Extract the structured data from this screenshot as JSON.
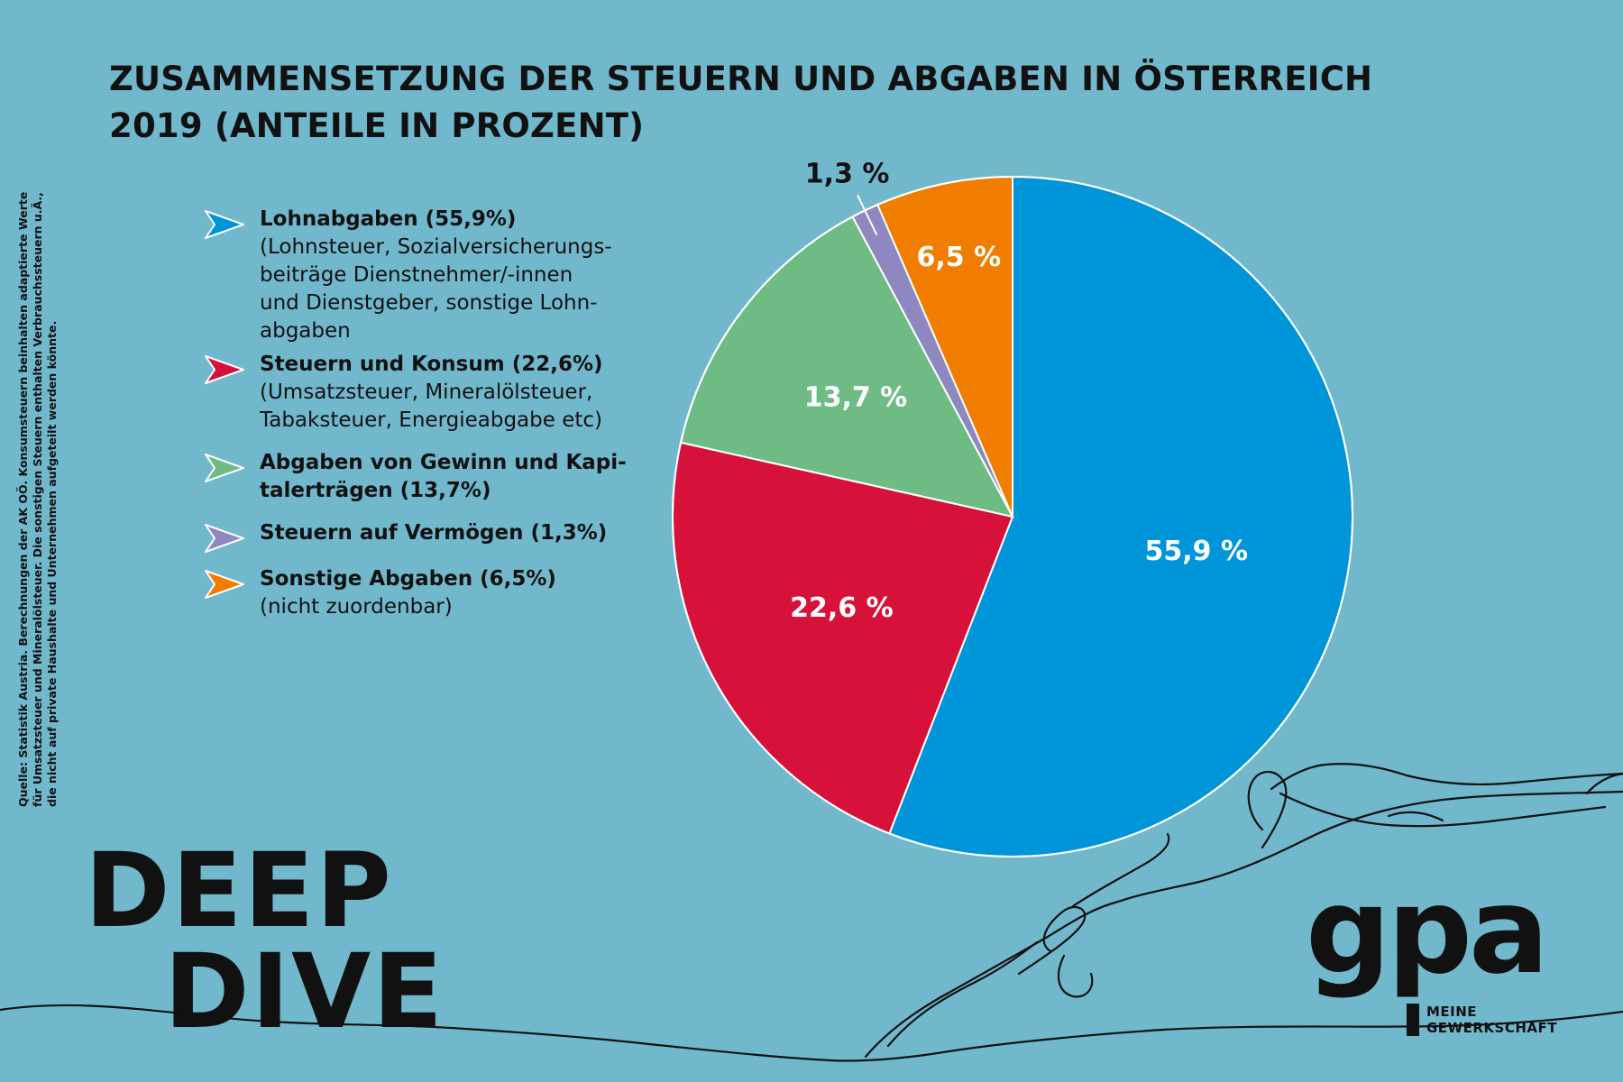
{
  "title": {
    "line1": "ZUSAMMENSETZUNG DER STEUERN UND ABGABEN IN ÖSTERREICH",
    "line2": "2019 (ANTEILE IN PROZENT)"
  },
  "legend": [
    {
      "label": "Lohnabgaben (55,9%)",
      "sub": [
        "(Lohnsteuer, Sozialversicherungs-",
        "beiträge Dienstnehmer/-innen",
        "und Dienstgeber, sonstige Lohn-",
        "abgaben"
      ],
      "color": "#0095d9"
    },
    {
      "label": "Steuern und Konsum (22,6%)",
      "sub": [
        "(Umsatzsteuer, Mineralölsteuer,",
        "Tabaksteuer, Energieabgabe etc)"
      ],
      "color": "#d6113a"
    },
    {
      "label": "Abgaben von Gewinn und Kapi-",
      "label2": "talerträgen (13,7%)",
      "sub": [],
      "color": "#6fbb84"
    },
    {
      "label": "Steuern auf Vermögen (1,3%)",
      "sub": [],
      "color": "#8f87c0"
    },
    {
      "label": "Sonstige Abgaben (6,5%)",
      "sub": [
        "(nicht zuordenbar)"
      ],
      "color": "#f07d00"
    }
  ],
  "source": {
    "line1": "Quelle: Statistik Austria. Berechnungen der AK OÖ. Konsumsteuern beinhalten adaptierte Werte",
    "line2": "für Umsatzsteuer und Mineralölsteuer. Die sonstigen Steuern enthalten Verbrauchssteuern u.Ä.,",
    "line3": "die nicht auf private Haushalte und Unternehmen aufgeteilt werden könnte."
  },
  "branding": {
    "deep": "DEEP",
    "dive": "DIVE",
    "logo_word": "gpa",
    "logo_sub1": "MEINE",
    "logo_sub2": "GEWERKSCHAFT"
  },
  "chart_data": {
    "type": "pie",
    "categories": [
      "Lohnabgaben",
      "Steuern und Konsum",
      "Abgaben von Gewinn und Kapitalerträgen",
      "Steuern auf Vermögen",
      "Sonstige Abgaben"
    ],
    "values": [
      55.9,
      22.6,
      13.7,
      1.3,
      6.5
    ],
    "labels": [
      "55,9 %",
      "22,6 %",
      "13,7 %",
      "1,3 %",
      "6,5 %"
    ],
    "colors": [
      "#0095d9",
      "#d6113a",
      "#6fbb84",
      "#8f87c0",
      "#f07d00"
    ],
    "label_colors": [
      "#ffffff",
      "#ffffff",
      "#ffffff",
      "#111111",
      "#ffffff"
    ],
    "start": "12 o'clock",
    "direction": "clockwise",
    "legend": "left"
  }
}
